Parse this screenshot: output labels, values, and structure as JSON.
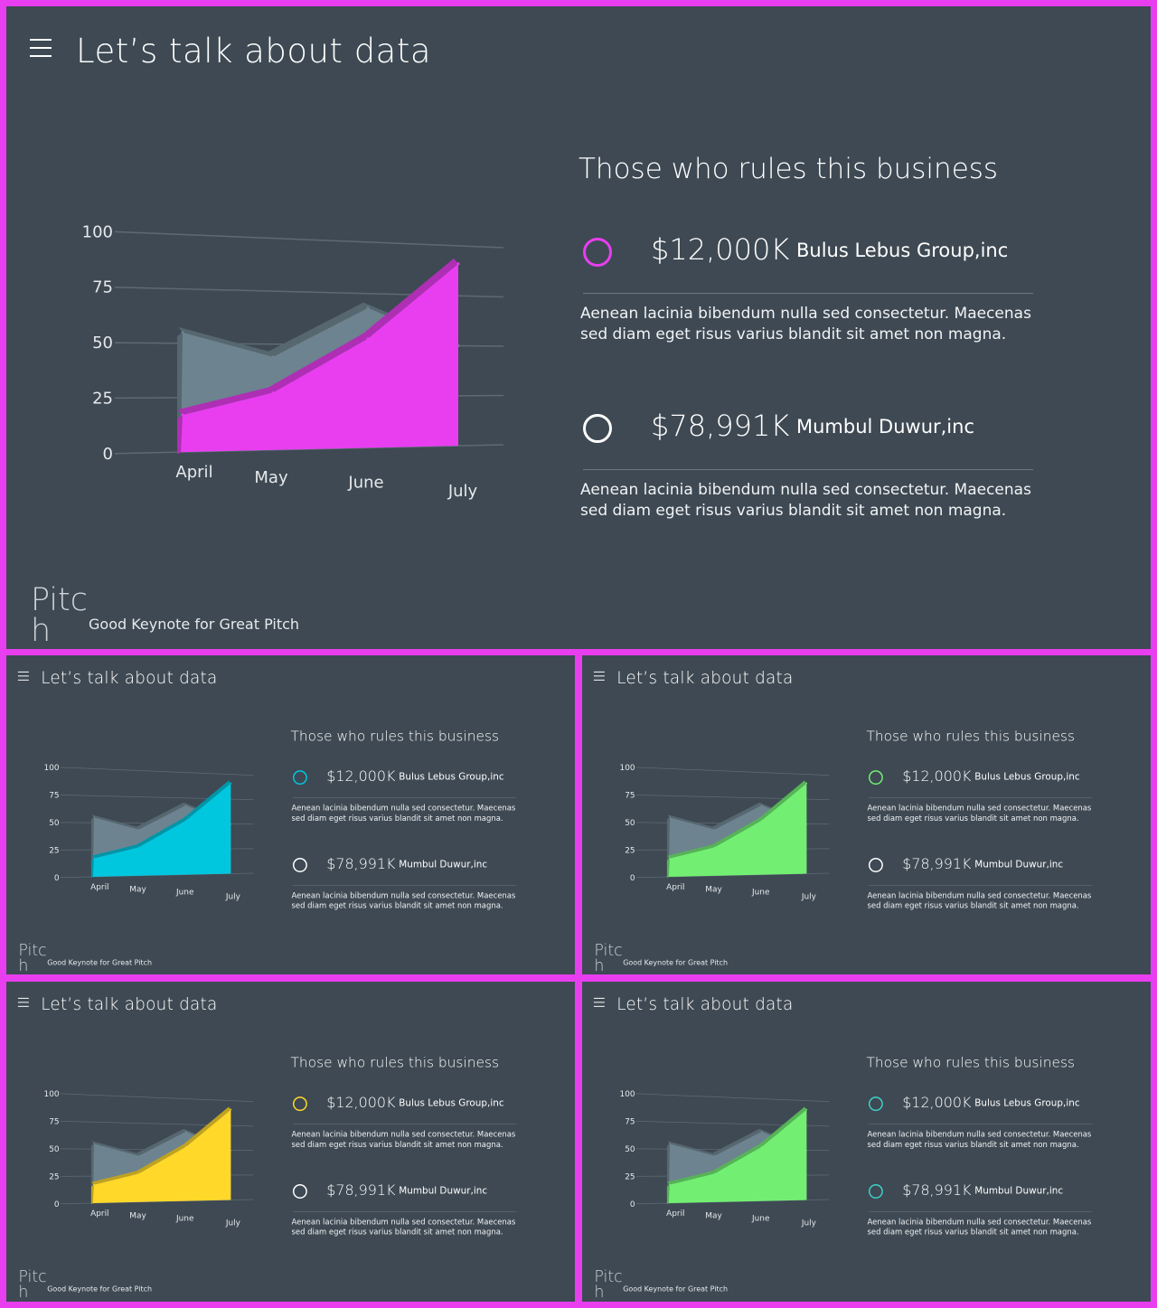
{
  "slide_title": "Let’s talk about data",
  "legend_title": "Those who rules this business",
  "entries": [
    {
      "amount": "$12,000K",
      "company": "Bulus Lebus Group,inc",
      "description": "Aenean lacinia bibendum nulla sed consectetur. Maecenas sed diam eget risus varius blandit sit amet non magna."
    },
    {
      "amount": "$78,991K",
      "company": "Mumbul Duwur,inc",
      "description": "Aenean lacinia bibendum nulla sed consectetur. Maecenas sed diam eget risus varius blandit sit amet non magna."
    }
  ],
  "brand": "Pitch",
  "tagline": "Good Keynote for Great Pitch",
  "icons": {
    "menu": "hamburger-menu-icon",
    "bullet": "ring-icon"
  },
  "colors": {
    "background": "#3e4953",
    "frame": "#e83ef0",
    "series_back": "#6d8390"
  },
  "variants": [
    {
      "id": "main",
      "accent": "#e83ef0",
      "ring1": "#e83ef0",
      "ring2": "#ffffff"
    },
    {
      "id": "cyan",
      "accent": "#00c7de",
      "ring1": "#00c7de",
      "ring2": "#ffffff"
    },
    {
      "id": "green",
      "accent": "#72ef72",
      "ring1": "#72ef72",
      "ring2": "#ffffff"
    },
    {
      "id": "yellow",
      "accent": "#ffd82a",
      "ring1": "#ffd82a",
      "ring2": "#ffffff"
    },
    {
      "id": "green2",
      "accent": "#72ef72",
      "ring1": "#3fd0c8",
      "ring2": "#3fd0c8"
    }
  ],
  "chart_data": {
    "type": "area",
    "categories": [
      "April",
      "May",
      "June",
      "July"
    ],
    "y_ticks": [
      "100",
      "75",
      "50",
      "25",
      "0"
    ],
    "ylim": [
      0,
      100
    ],
    "grid": true,
    "series": [
      {
        "values": [
          55,
          44,
          68,
          50
        ]
      },
      {
        "values": [
          17,
          27,
          53,
          91
        ]
      }
    ]
  }
}
